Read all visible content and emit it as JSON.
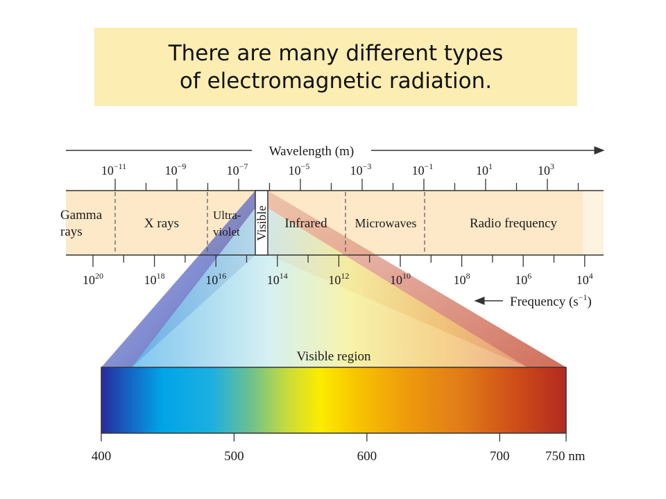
{
  "title": {
    "line1": "There are many different types",
    "line2": "of electromagnetic radiation."
  },
  "wavelength_axis": {
    "label": "Wavelength (m)",
    "ticks": [
      {
        "base": "10",
        "exp": "−11"
      },
      {
        "base": "10",
        "exp": "−9"
      },
      {
        "base": "10",
        "exp": "−7"
      },
      {
        "base": "10",
        "exp": "−5"
      },
      {
        "base": "10",
        "exp": "−3"
      },
      {
        "base": "10",
        "exp": "−1"
      },
      {
        "base": "10",
        "exp": "1"
      },
      {
        "base": "10",
        "exp": "3"
      }
    ]
  },
  "frequency_axis": {
    "label": "Frequency (s",
    "label_exp": "−1",
    "label_close": ")",
    "ticks": [
      {
        "base": "10",
        "exp": "20"
      },
      {
        "base": "10",
        "exp": "18"
      },
      {
        "base": "10",
        "exp": "16"
      },
      {
        "base": "10",
        "exp": "14"
      },
      {
        "base": "10",
        "exp": "12"
      },
      {
        "base": "10",
        "exp": "10"
      },
      {
        "base": "10",
        "exp": "8"
      },
      {
        "base": "10",
        "exp": "6"
      },
      {
        "base": "10",
        "exp": "4"
      }
    ]
  },
  "regions": {
    "gamma_line1": "Gamma",
    "gamma_line2": "rays",
    "xrays": "X rays",
    "uv_line1": "Ultra-",
    "uv_line2": "violet",
    "visible": "Visible",
    "infrared": "Infrared",
    "microwaves": "Microwaves",
    "radio": "Radio frequency"
  },
  "visible_region": {
    "label": "Visible region",
    "ticks": [
      "400",
      "500",
      "600",
      "700",
      "750 nm"
    ]
  },
  "colors": {
    "band": "#fde9c8",
    "title_bg": "#fcedb3"
  }
}
